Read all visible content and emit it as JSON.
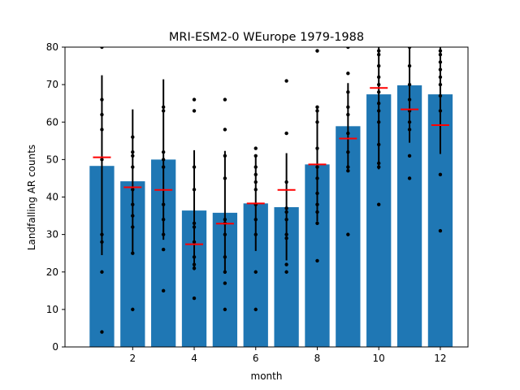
{
  "chart_data": {
    "type": "bar",
    "title": "MRI-ESM2-0 WEurope 1979-1988",
    "xlabel": "month",
    "ylabel": "Landfalling AR counts",
    "xlim": [
      -0.2,
      12.9
    ],
    "ylim": [
      0,
      80
    ],
    "xticks": [
      2,
      4,
      6,
      8,
      10,
      12
    ],
    "yticks": [
      0,
      10,
      20,
      30,
      40,
      50,
      60,
      70,
      80
    ],
    "grid": false,
    "colors": {
      "bar": "#1f77b4",
      "errorbar": "#000000",
      "points": "#000000",
      "marker": "#ff0000"
    },
    "months": [
      1,
      2,
      3,
      4,
      5,
      6,
      7,
      8,
      9,
      10,
      11,
      12
    ],
    "bars": [
      48.3,
      44.2,
      50.0,
      36.4,
      35.8,
      38.3,
      37.3,
      48.7,
      58.9,
      67.4,
      69.8,
      67.4
    ],
    "error_low": [
      24.5,
      25.0,
      28.6,
      20.5,
      19.5,
      25.6,
      23.1,
      33.5,
      47.4,
      47.4,
      54.5,
      51.5
    ],
    "error_high": [
      72.5,
      63.4,
      71.4,
      52.5,
      52.3,
      51.1,
      51.7,
      63.9,
      70.4,
      87.4,
      85.1,
      83.3
    ],
    "red_marks": [
      50.6,
      42.6,
      41.9,
      27.4,
      32.9,
      38.3,
      41.9,
      48.7,
      55.6,
      69.1,
      63.4,
      59.2
    ],
    "points": [
      [
        4,
        20,
        28,
        30,
        50,
        58,
        62,
        66,
        80
      ],
      [
        10,
        25,
        32,
        35,
        38,
        42,
        48,
        51,
        52,
        56
      ],
      [
        15,
        26,
        30,
        34,
        38,
        48,
        50,
        52,
        63,
        64
      ],
      [
        13,
        21,
        22,
        24,
        28,
        32,
        33,
        42,
        48,
        63,
        66
      ],
      [
        10,
        17,
        20,
        24,
        30,
        33,
        34,
        45,
        51,
        58,
        66
      ],
      [
        10,
        20,
        30,
        34,
        38,
        42,
        44,
        46,
        48,
        51,
        53
      ],
      [
        20,
        22,
        29,
        30,
        34,
        36,
        37,
        44,
        57,
        71
      ],
      [
        23,
        33,
        36,
        38,
        41,
        45,
        48,
        53,
        60,
        63,
        64,
        79
      ],
      [
        30,
        47,
        48,
        52,
        57,
        62,
        64,
        68,
        73,
        80
      ],
      [
        38,
        48,
        49,
        54,
        60,
        63,
        65,
        68,
        70,
        72,
        75,
        78,
        79
      ],
      [
        45,
        51,
        58,
        60,
        63,
        66,
        70,
        75,
        80
      ],
      [
        31,
        46,
        63,
        67,
        70,
        72,
        74,
        76,
        78,
        79
      ]
    ]
  }
}
